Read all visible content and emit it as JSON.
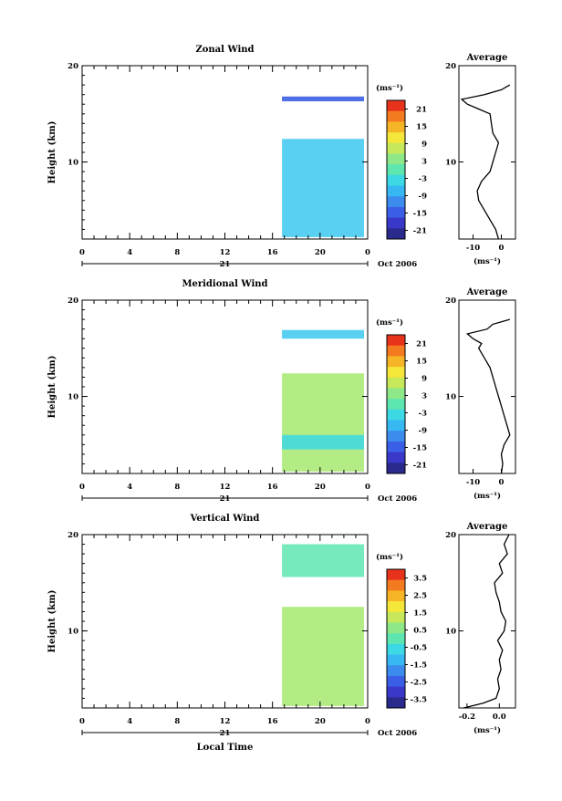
{
  "figure": {
    "xlabel_bottom": "Local Time",
    "colorbar_unit": "(ms⁻¹)",
    "avg_unit": "(ms⁻¹)",
    "date_label": "Oct 2006",
    "day_label": "21",
    "ylabel": "Height (km)",
    "avg_title": "Average"
  },
  "chart_data": [
    {
      "type": "heatmap",
      "title": "Zonal Wind",
      "ylabel": "Height (km)",
      "xlabel": "",
      "x_ticks": [
        "0",
        "4",
        "8",
        "12",
        "16",
        "20",
        "0"
      ],
      "y_ticks": [
        "20",
        "10"
      ],
      "xlim": [
        0,
        24
      ],
      "ylim": [
        2,
        20
      ],
      "date": "Oct 2006",
      "data_start_hour": 16.8,
      "layers": [
        {
          "z_lo": 2.2,
          "z_hi": 12.4,
          "value": -6,
          "color": "#3cc8f0"
        },
        {
          "z_lo": 16.3,
          "z_hi": 16.8,
          "value": -18,
          "color": "#2f56e0"
        }
      ],
      "colorbar": {
        "ticks": [
          "21",
          "15",
          "9",
          "3",
          "-3",
          "-9",
          "-15",
          "-21"
        ],
        "colors": [
          "#e8331c",
          "#f47a20",
          "#f6b526",
          "#f5e63a",
          "#c6e85a",
          "#8ee888",
          "#5ee6b0",
          "#3cd8e4",
          "#38b8f2",
          "#3c8cee",
          "#3a5ee6",
          "#3a38c8",
          "#2a2a8c"
        ]
      },
      "average": {
        "x_ticks": [
          "-10",
          "0"
        ],
        "xlim": [
          -15,
          5
        ],
        "y": [
          2,
          3,
          4,
          5,
          6,
          7,
          8,
          9,
          10,
          11,
          12,
          13,
          14,
          15,
          15.5,
          16,
          16.5,
          17,
          17.5,
          18
        ],
        "x": [
          -1,
          -2,
          -4,
          -6,
          -8,
          -8.5,
          -7,
          -4,
          -3,
          -2,
          -1,
          -3,
          -3.5,
          -4,
          -8,
          -12,
          -14,
          -6,
          0,
          3
        ]
      }
    },
    {
      "type": "heatmap",
      "title": "Meridional Wind",
      "ylabel": "Height (km)",
      "xlabel": "",
      "x_ticks": [
        "0",
        "4",
        "8",
        "12",
        "16",
        "20",
        "0"
      ],
      "y_ticks": [
        "20",
        "10"
      ],
      "xlim": [
        0,
        24
      ],
      "ylim": [
        2,
        20
      ],
      "date": "Oct 2006",
      "data_start_hour": 16.8,
      "layers": [
        {
          "z_lo": 2.2,
          "z_hi": 12.4,
          "value": 3,
          "color": "#a6e870"
        },
        {
          "z_lo": 4.5,
          "z_hi": 6.0,
          "value": -3,
          "color": "#3cd8e4"
        },
        {
          "z_lo": 16.0,
          "z_hi": 16.9,
          "value": -6,
          "color": "#3cc8f0"
        }
      ],
      "colorbar": {
        "ticks": [
          "21",
          "15",
          "9",
          "3",
          "-3",
          "-9",
          "-15",
          "-21"
        ],
        "colors": [
          "#e8331c",
          "#f47a20",
          "#f6b526",
          "#f5e63a",
          "#c6e85a",
          "#8ee888",
          "#5ee6b0",
          "#3cd8e4",
          "#38b8f2",
          "#3c8cee",
          "#3a5ee6",
          "#3a38c8",
          "#2a2a8c"
        ]
      },
      "average": {
        "x_ticks": [
          "-10",
          "0"
        ],
        "xlim": [
          -15,
          5
        ],
        "y": [
          2,
          3,
          4,
          5,
          6,
          7,
          8,
          9,
          10,
          11,
          12,
          13,
          14,
          15,
          15.5,
          16,
          16.5,
          17,
          17.5,
          18
        ],
        "x": [
          0,
          0.5,
          0,
          1,
          3,
          2,
          1,
          0,
          -1,
          -2,
          -3,
          -4,
          -6,
          -8,
          -7,
          -10,
          -12,
          -5,
          -3,
          3
        ]
      }
    },
    {
      "type": "heatmap",
      "title": "Vertical Wind",
      "ylabel": "Height (km)",
      "xlabel": "Local Time",
      "x_ticks": [
        "0",
        "4",
        "8",
        "12",
        "16",
        "20",
        "0"
      ],
      "y_ticks": [
        "20",
        "10"
      ],
      "xlim": [
        0,
        24
      ],
      "ylim": [
        2,
        20
      ],
      "date": "Oct 2006",
      "data_start_hour": 16.8,
      "layers": [
        {
          "z_lo": 2.2,
          "z_hi": 12.5,
          "value": 0.2,
          "color": "#a6e870"
        },
        {
          "z_lo": 15.6,
          "z_hi": 19.0,
          "value": -0.3,
          "color": "#5ee6b0"
        }
      ],
      "colorbar": {
        "ticks": [
          "3.5",
          "2.5",
          "1.5",
          "0.5",
          "-0.5",
          "-1.5",
          "-2.5",
          "-3.5"
        ],
        "colors": [
          "#e8331c",
          "#f47a20",
          "#f6b526",
          "#f5e63a",
          "#c6e85a",
          "#8ee888",
          "#5ee6b0",
          "#3cd8e4",
          "#38b8f2",
          "#3c8cee",
          "#3a5ee6",
          "#3a38c8",
          "#2a2a8c"
        ]
      },
      "average": {
        "x_ticks": [
          "-0.2",
          "0.0"
        ],
        "xlim": [
          -0.25,
          0.1
        ],
        "y": [
          2,
          2.5,
          3,
          4,
          5,
          6,
          7,
          8,
          9,
          10,
          11,
          12,
          13,
          14,
          15,
          16,
          17,
          18,
          19,
          20
        ],
        "x": [
          -0.22,
          -0.1,
          -0.02,
          0.0,
          -0.01,
          0.01,
          0.0,
          0.02,
          -0.01,
          0.03,
          0.04,
          0.01,
          0.0,
          -0.02,
          -0.03,
          0.02,
          0.0,
          0.05,
          0.03,
          0.06
        ]
      }
    }
  ]
}
